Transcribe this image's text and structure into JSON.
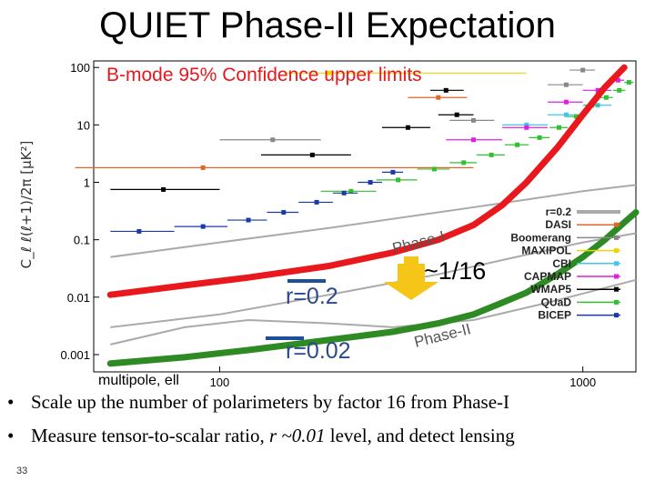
{
  "slide": {
    "title": "QUIET Phase-II Expectation",
    "page_number": "33",
    "bullets": [
      {
        "text": "Scale up the number of polarimeters by factor 16 from Phase-I"
      },
      {
        "prefix": "Measure tensor-to-scalar ratio, ",
        "italic": "r ~0.01",
        "suffix": " level, and detect lensing"
      }
    ]
  },
  "chart_data": {
    "type": "scatter",
    "title": "B-mode 95% Confidence upper limits",
    "xlabel": "multipole, ell",
    "ylabel": "C_ℓ ℓ(ℓ+1)/2π [μK²]",
    "x_scale": "log",
    "y_scale": "log",
    "xlim": [
      45,
      1400
    ],
    "ylim": [
      0.0005,
      130
    ],
    "x_ticks": [
      100,
      1000
    ],
    "y_ticks": [
      {
        "value": 100,
        "label": "100"
      },
      {
        "value": 10,
        "label": "10"
      },
      {
        "value": 1,
        "label": "1"
      },
      {
        "value": 0.1,
        "label": "0.1"
      },
      {
        "value": 0.01,
        "label": "0.01"
      },
      {
        "value": 0.001,
        "label": "0.001"
      }
    ],
    "legend_position": "right",
    "colors": {
      "expectation_phase1": "#e8181c",
      "expectation_phase2": "#2e8b23",
      "arrow": "#f5c518",
      "r_marker": "#1f4e9c",
      "phase_label": "#555555",
      "theory": "#aaaaaa"
    },
    "theory_curves": [
      {
        "name": "r=0.2",
        "points": [
          [
            50,
            0.05
          ],
          [
            100,
            0.09
          ],
          [
            200,
            0.16
          ],
          [
            400,
            0.3
          ],
          [
            700,
            0.5
          ],
          [
            1000,
            0.7
          ],
          [
            1400,
            0.9
          ]
        ]
      },
      {
        "name": "",
        "points": [
          [
            50,
            0.003
          ],
          [
            100,
            0.005
          ],
          [
            200,
            0.011
          ],
          [
            400,
            0.025
          ],
          [
            700,
            0.055
          ],
          [
            1000,
            0.09
          ],
          [
            1400,
            0.13
          ]
        ]
      },
      {
        "name": "",
        "points": [
          [
            50,
            0.0015
          ],
          [
            80,
            0.003
          ],
          [
            120,
            0.004
          ],
          [
            200,
            0.0035
          ],
          [
            300,
            0.003
          ],
          [
            500,
            0.004
          ],
          [
            800,
            0.008
          ],
          [
            1400,
            0.02
          ]
        ]
      }
    ],
    "expectation_curves": [
      {
        "label": "Phase-I",
        "points": [
          [
            50,
            0.011
          ],
          [
            80,
            0.016
          ],
          [
            120,
            0.022
          ],
          [
            200,
            0.035
          ],
          [
            300,
            0.06
          ],
          [
            400,
            0.1
          ],
          [
            500,
            0.18
          ],
          [
            600,
            0.4
          ],
          [
            700,
            1.0
          ],
          [
            850,
            4
          ],
          [
            1000,
            15
          ],
          [
            1150,
            45
          ],
          [
            1300,
            100
          ]
        ]
      },
      {
        "label": "Phase-II",
        "points": [
          [
            50,
            0.0007
          ],
          [
            80,
            0.0009
          ],
          [
            120,
            0.0012
          ],
          [
            200,
            0.0018
          ],
          [
            300,
            0.0025
          ],
          [
            400,
            0.0035
          ],
          [
            500,
            0.005
          ],
          [
            600,
            0.008
          ],
          [
            700,
            0.012
          ],
          [
            850,
            0.025
          ],
          [
            1000,
            0.05
          ],
          [
            1150,
            0.1
          ],
          [
            1300,
            0.2
          ],
          [
            1400,
            0.3
          ]
        ]
      }
    ],
    "r_markers": [
      {
        "label": "r=0.2",
        "y": 0.02
      },
      {
        "label": "r=0.02",
        "y": 0.0016
      }
    ],
    "ratio_label": "~1/16",
    "series": [
      {
        "name": "r=0.2",
        "color": "#aaaaaa",
        "style": "line",
        "points": []
      },
      {
        "name": "DASI",
        "color": "#e0662a",
        "points": [
          {
            "x": 90,
            "y": 1.8,
            "xerr": [
              40,
              500
            ]
          },
          {
            "x": 400,
            "y": 30,
            "xerr": [
              330,
              480
            ]
          }
        ]
      },
      {
        "name": "Boomerang",
        "color": "#888888",
        "points": [
          {
            "x": 140,
            "y": 5.5,
            "xerr": [
              100,
              190
            ]
          },
          {
            "x": 500,
            "y": 12,
            "xerr": [
              430,
              570
            ]
          },
          {
            "x": 900,
            "y": 50,
            "xerr": [
              800,
              1000
            ]
          },
          {
            "x": 1000,
            "y": 90,
            "xerr": [
              920,
              1080
            ]
          }
        ]
      },
      {
        "name": "MAXIPOL",
        "color": "#e8d800",
        "points": [
          {
            "x": 200,
            "y": 80,
            "xerr": [
              150,
              700
            ]
          }
        ]
      },
      {
        "name": "CBI",
        "color": "#40c8e8",
        "points": [
          {
            "x": 700,
            "y": 10,
            "xerr": [
              600,
              800
            ]
          },
          {
            "x": 900,
            "y": 15,
            "xerr": [
              800,
              1000
            ]
          },
          {
            "x": 1100,
            "y": 22,
            "xerr": [
              1000,
              1200
            ]
          }
        ]
      },
      {
        "name": "CAPMAP",
        "color": "#e020e0",
        "points": [
          {
            "x": 500,
            "y": 5.5,
            "xerr": [
              420,
              600
            ]
          },
          {
            "x": 700,
            "y": 9,
            "xerr": [
              600,
              800
            ]
          },
          {
            "x": 900,
            "y": 25,
            "xerr": [
              800,
              1000
            ]
          },
          {
            "x": 1100,
            "y": 40,
            "xerr": [
              1000,
              1200
            ]
          },
          {
            "x": 1250,
            "y": 60,
            "xerr": [
              1200,
              1300
            ]
          }
        ]
      },
      {
        "name": "WMAP5",
        "color": "#000000",
        "points": [
          {
            "x": 70,
            "y": 0.75,
            "xerr": [
              50,
              100
            ]
          },
          {
            "x": 180,
            "y": 3,
            "xerr": [
              130,
              230
            ]
          },
          {
            "x": 330,
            "y": 9,
            "xerr": [
              280,
              380
            ]
          },
          {
            "x": 420,
            "y": 40,
            "xerr": [
              380,
              470
            ]
          },
          {
            "x": 450,
            "y": 15,
            "xerr": [
              400,
              500
            ]
          }
        ]
      },
      {
        "name": "QUaD",
        "color": "#30c030",
        "points": [
          {
            "x": 230,
            "y": 0.7,
            "xerr": [
              190,
              270
            ]
          },
          {
            "x": 310,
            "y": 1.1,
            "xerr": [
              270,
              350
            ]
          },
          {
            "x": 390,
            "y": 1.7,
            "xerr": [
              350,
              430
            ]
          },
          {
            "x": 470,
            "y": 2.2,
            "xerr": [
              430,
              510
            ]
          },
          {
            "x": 560,
            "y": 3,
            "xerr": [
              510,
              610
            ]
          },
          {
            "x": 660,
            "y": 4.5,
            "xerr": [
              610,
              710
            ]
          },
          {
            "x": 760,
            "y": 6,
            "xerr": [
              710,
              810
            ]
          },
          {
            "x": 860,
            "y": 9,
            "xerr": [
              810,
              910
            ]
          },
          {
            "x": 960,
            "y": 14,
            "xerr": [
              910,
              1010
            ]
          },
          {
            "x": 1060,
            "y": 22,
            "xerr": [
              1010,
              1110
            ]
          },
          {
            "x": 1160,
            "y": 30,
            "xerr": [
              1110,
              1210
            ]
          },
          {
            "x": 1260,
            "y": 40,
            "xerr": [
              1210,
              1310
            ]
          },
          {
            "x": 1340,
            "y": 55,
            "xerr": [
              1300,
              1380
            ]
          }
        ]
      },
      {
        "name": "BICEP",
        "color": "#1a3aa8",
        "points": [
          {
            "x": 60,
            "y": 0.14,
            "xerr": [
              50,
              75
            ]
          },
          {
            "x": 90,
            "y": 0.17,
            "xerr": [
              75,
              105
            ]
          },
          {
            "x": 120,
            "y": 0.22,
            "xerr": [
              105,
              135
            ]
          },
          {
            "x": 150,
            "y": 0.3,
            "xerr": [
              135,
              165
            ]
          },
          {
            "x": 185,
            "y": 0.45,
            "xerr": [
              165,
              205
            ]
          },
          {
            "x": 220,
            "y": 0.65,
            "xerr": [
              205,
              240
            ]
          },
          {
            "x": 260,
            "y": 1.0,
            "xerr": [
              240,
              280
            ]
          },
          {
            "x": 300,
            "y": 1.5,
            "xerr": [
              280,
              320
            ]
          }
        ]
      }
    ]
  }
}
